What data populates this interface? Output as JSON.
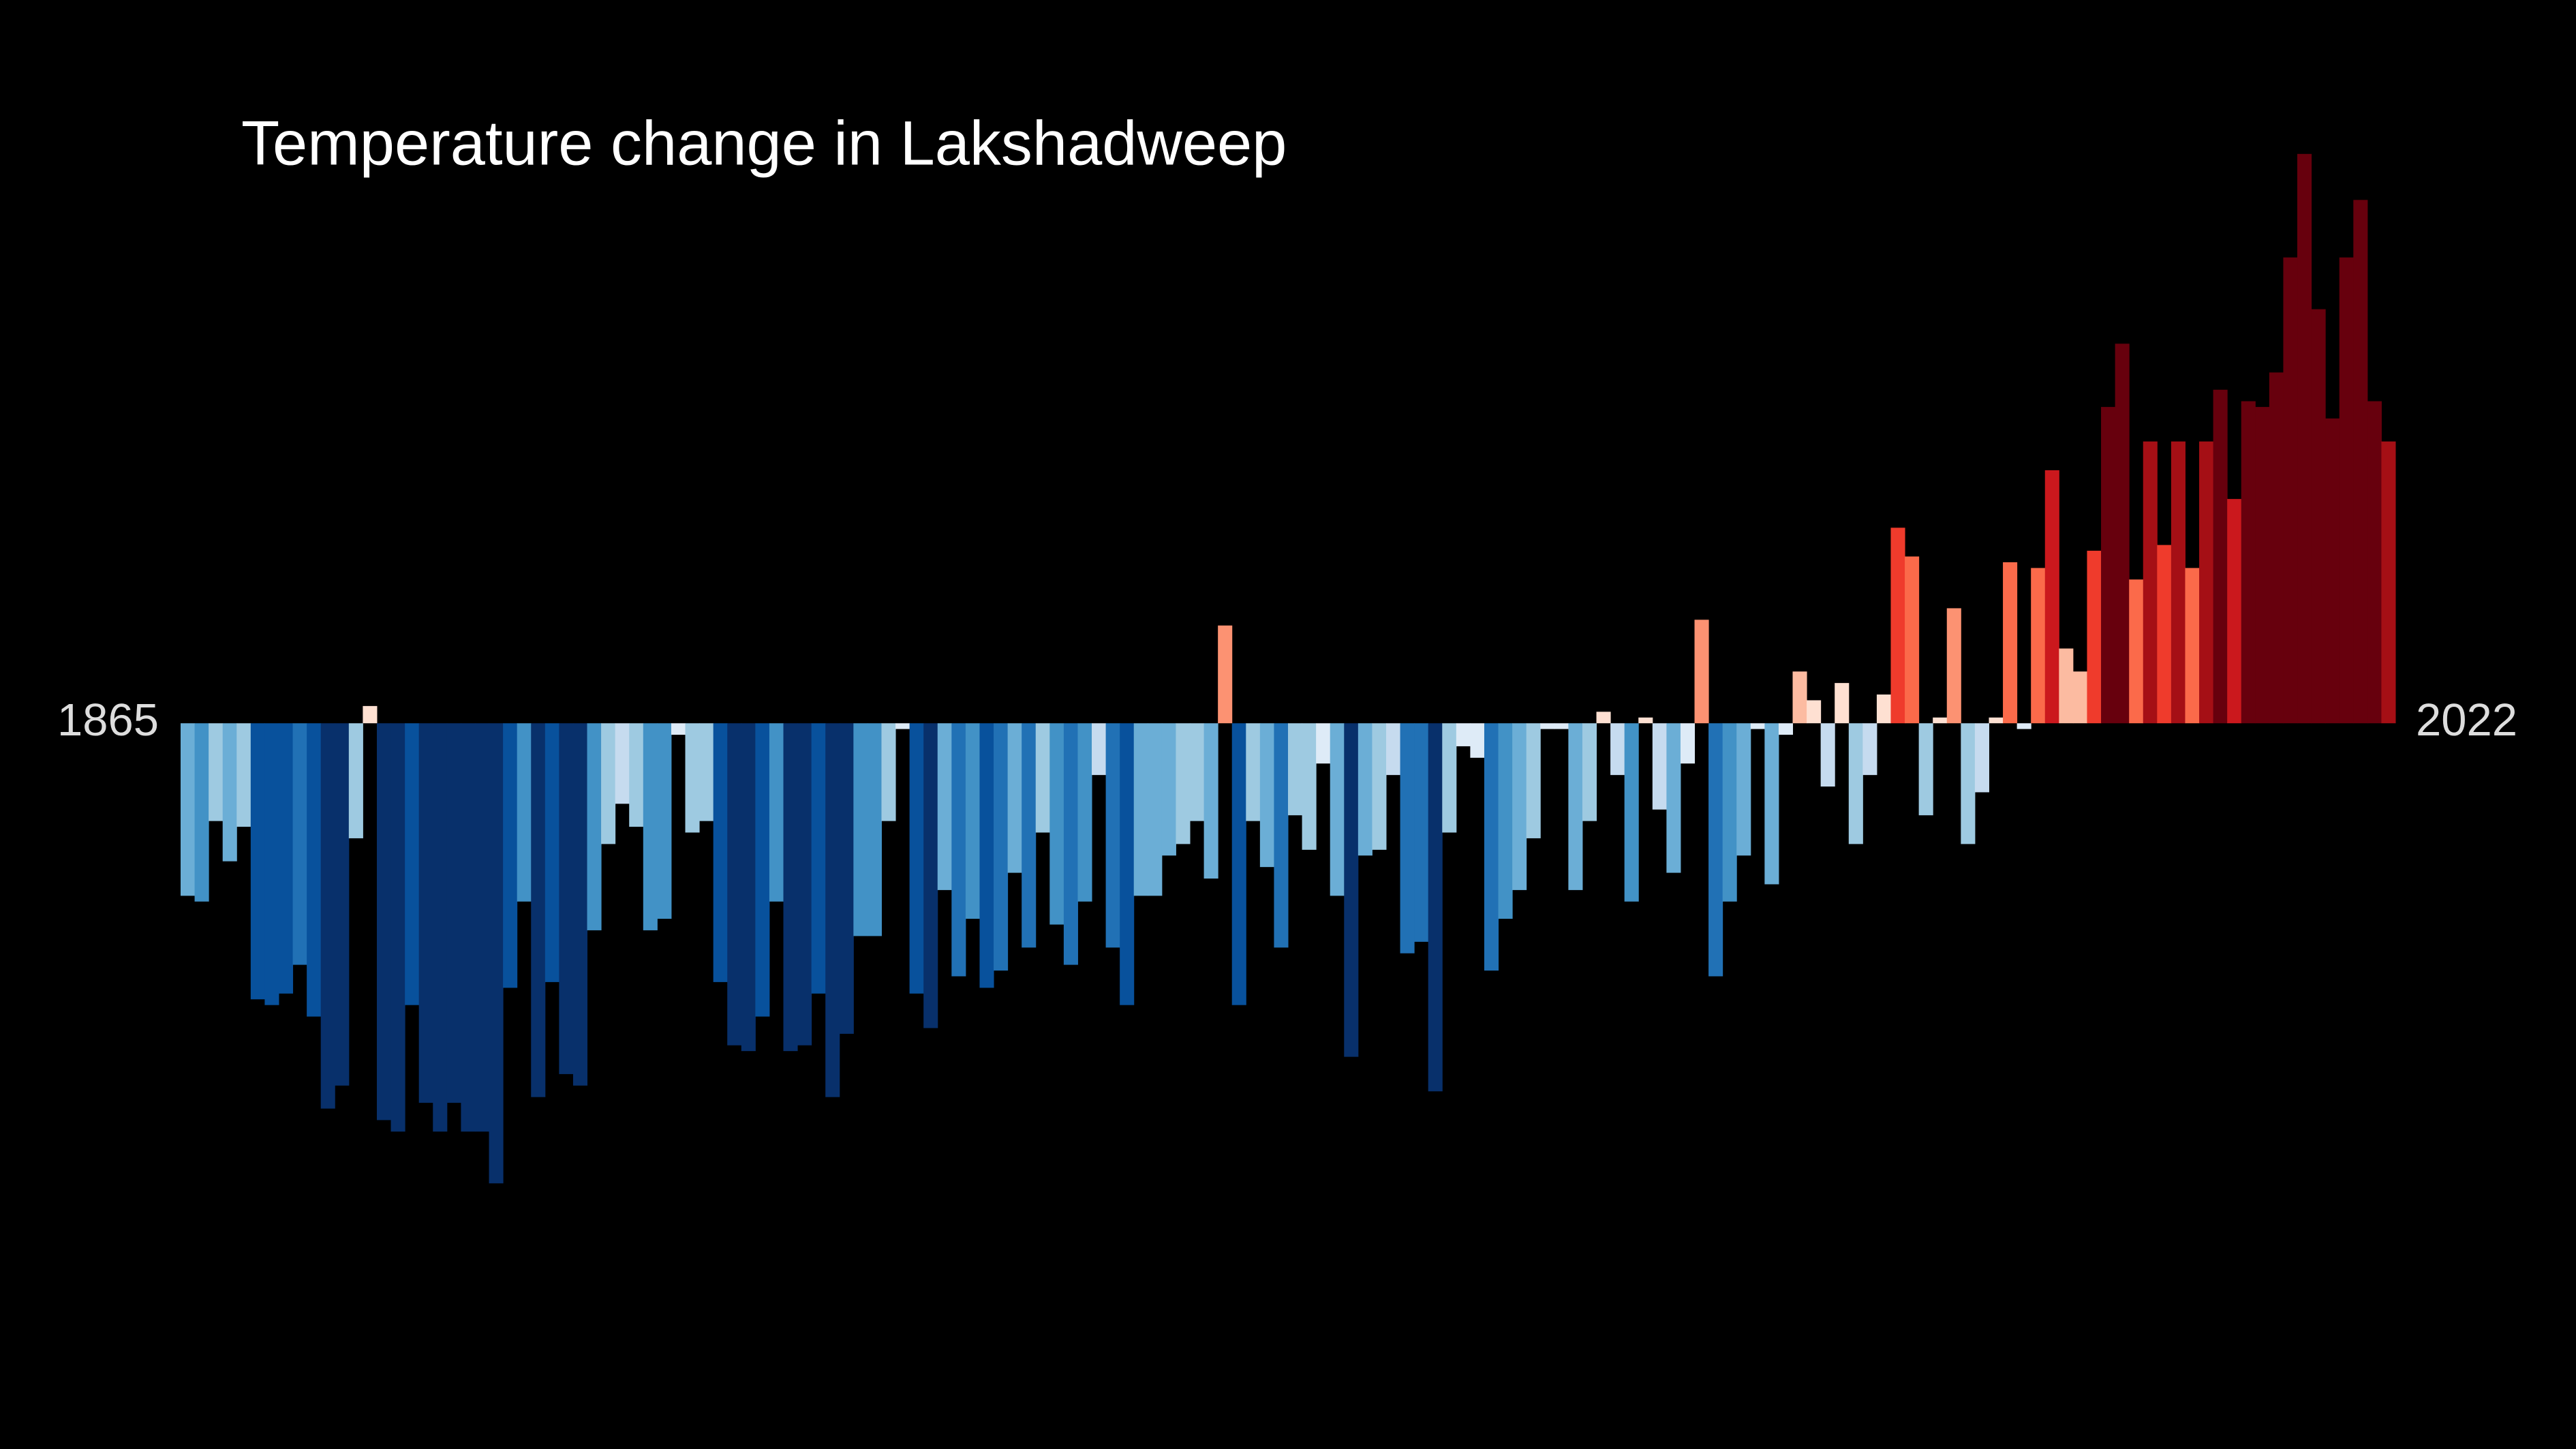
{
  "chart_data": {
    "type": "bar",
    "title": "Temperature change in Lakshadweep",
    "x": [
      1865,
      1866,
      1867,
      1868,
      1869,
      1870,
      1871,
      1872,
      1873,
      1874,
      1875,
      1876,
      1877,
      1878,
      1879,
      1880,
      1881,
      1882,
      1883,
      1884,
      1885,
      1886,
      1887,
      1888,
      1889,
      1890,
      1891,
      1892,
      1893,
      1894,
      1895,
      1896,
      1897,
      1898,
      1899,
      1900,
      1901,
      1902,
      1903,
      1904,
      1905,
      1906,
      1907,
      1908,
      1909,
      1910,
      1911,
      1912,
      1913,
      1914,
      1915,
      1916,
      1917,
      1918,
      1919,
      1920,
      1921,
      1922,
      1923,
      1924,
      1925,
      1926,
      1927,
      1928,
      1929,
      1930,
      1931,
      1932,
      1933,
      1934,
      1935,
      1936,
      1937,
      1938,
      1939,
      1940,
      1941,
      1942,
      1943,
      1944,
      1945,
      1946,
      1947,
      1948,
      1949,
      1950,
      1951,
      1952,
      1953,
      1954,
      1955,
      1956,
      1957,
      1958,
      1959,
      1960,
      1961,
      1962,
      1963,
      1964,
      1965,
      1966,
      1967,
      1968,
      1969,
      1970,
      1971,
      1972,
      1973,
      1974,
      1975,
      1976,
      1977,
      1978,
      1979,
      1980,
      1981,
      1982,
      1983,
      1984,
      1985,
      1986,
      1987,
      1988,
      1989,
      1990,
      1991,
      1992,
      1993,
      1994,
      1995,
      1996,
      1997,
      1998,
      1999,
      2000,
      2001,
      2002,
      2003,
      2004,
      2005,
      2006,
      2007,
      2008,
      2009,
      2010,
      2011,
      2012,
      2013,
      2014,
      2015,
      2016,
      2017,
      2018,
      2019,
      2020,
      2021,
      2022
    ],
    "values": [
      -0.3,
      -0.31,
      -0.17,
      -0.24,
      -0.18,
      -0.48,
      -0.49,
      -0.47,
      -0.42,
      -0.51,
      -0.67,
      -0.63,
      -0.2,
      0.03,
      -0.69,
      -0.71,
      -0.49,
      -0.66,
      -0.71,
      -0.66,
      -0.71,
      -0.71,
      -0.8,
      -0.46,
      -0.31,
      -0.65,
      -0.45,
      -0.61,
      -0.63,
      -0.36,
      -0.21,
      -0.14,
      -0.18,
      -0.36,
      -0.34,
      -0.02,
      -0.19,
      -0.17,
      -0.45,
      -0.56,
      -0.57,
      -0.51,
      -0.31,
      -0.57,
      -0.56,
      -0.47,
      -0.65,
      -0.54,
      -0.37,
      -0.37,
      -0.17,
      -0.01,
      -0.47,
      -0.53,
      -0.29,
      -0.44,
      -0.34,
      -0.46,
      -0.43,
      -0.26,
      -0.39,
      -0.19,
      -0.35,
      -0.42,
      -0.31,
      -0.09,
      -0.39,
      -0.49,
      -0.3,
      -0.3,
      -0.23,
      -0.21,
      -0.17,
      -0.27,
      0.17,
      -0.49,
      -0.17,
      -0.25,
      -0.39,
      -0.16,
      -0.22,
      -0.07,
      -0.3,
      -0.58,
      -0.23,
      -0.22,
      -0.09,
      -0.4,
      -0.38,
      -0.64,
      -0.19,
      -0.04,
      -0.06,
      -0.43,
      -0.34,
      -0.29,
      -0.2,
      -0.01,
      -0.01,
      -0.29,
      -0.17,
      0.02,
      -0.09,
      -0.31,
      0.01,
      -0.15,
      -0.26,
      -0.07,
      0.18,
      -0.44,
      -0.31,
      -0.23,
      -0.01,
      -0.28,
      -0.02,
      0.09,
      0.04,
      -0.11,
      0.07,
      -0.21,
      -0.09,
      0.05,
      0.34,
      0.29,
      -0.16,
      0.01,
      0.2,
      -0.21,
      -0.12,
      0.01,
      0.28,
      -0.01,
      0.27,
      0.44,
      0.13,
      0.09,
      0.3,
      0.55,
      0.66,
      0.25,
      0.49,
      0.31,
      0.49,
      0.27,
      0.49,
      0.58,
      0.39,
      0.56,
      0.55,
      0.61,
      0.81,
      0.99,
      0.72,
      0.53,
      0.81,
      0.91,
      0.56,
      0.49
    ],
    "xlim": [
      1864.5,
      2022.5
    ],
    "xticks": [
      1865,
      2022
    ],
    "ylim": [
      -1.0,
      1.1
    ],
    "colormap": [
      "#08306b",
      "#08519c",
      "#2171b5",
      "#4292c6",
      "#6baed6",
      "#9ecae1",
      "#c6dbef",
      "#deebf7",
      "#fee0d2",
      "#fcbba1",
      "#fc9272",
      "#fb6a4a",
      "#ef3b2c",
      "#cb181d",
      "#a50f15",
      "#67000d"
    ],
    "colorlim": [
      -0.6,
      0.6
    ]
  }
}
